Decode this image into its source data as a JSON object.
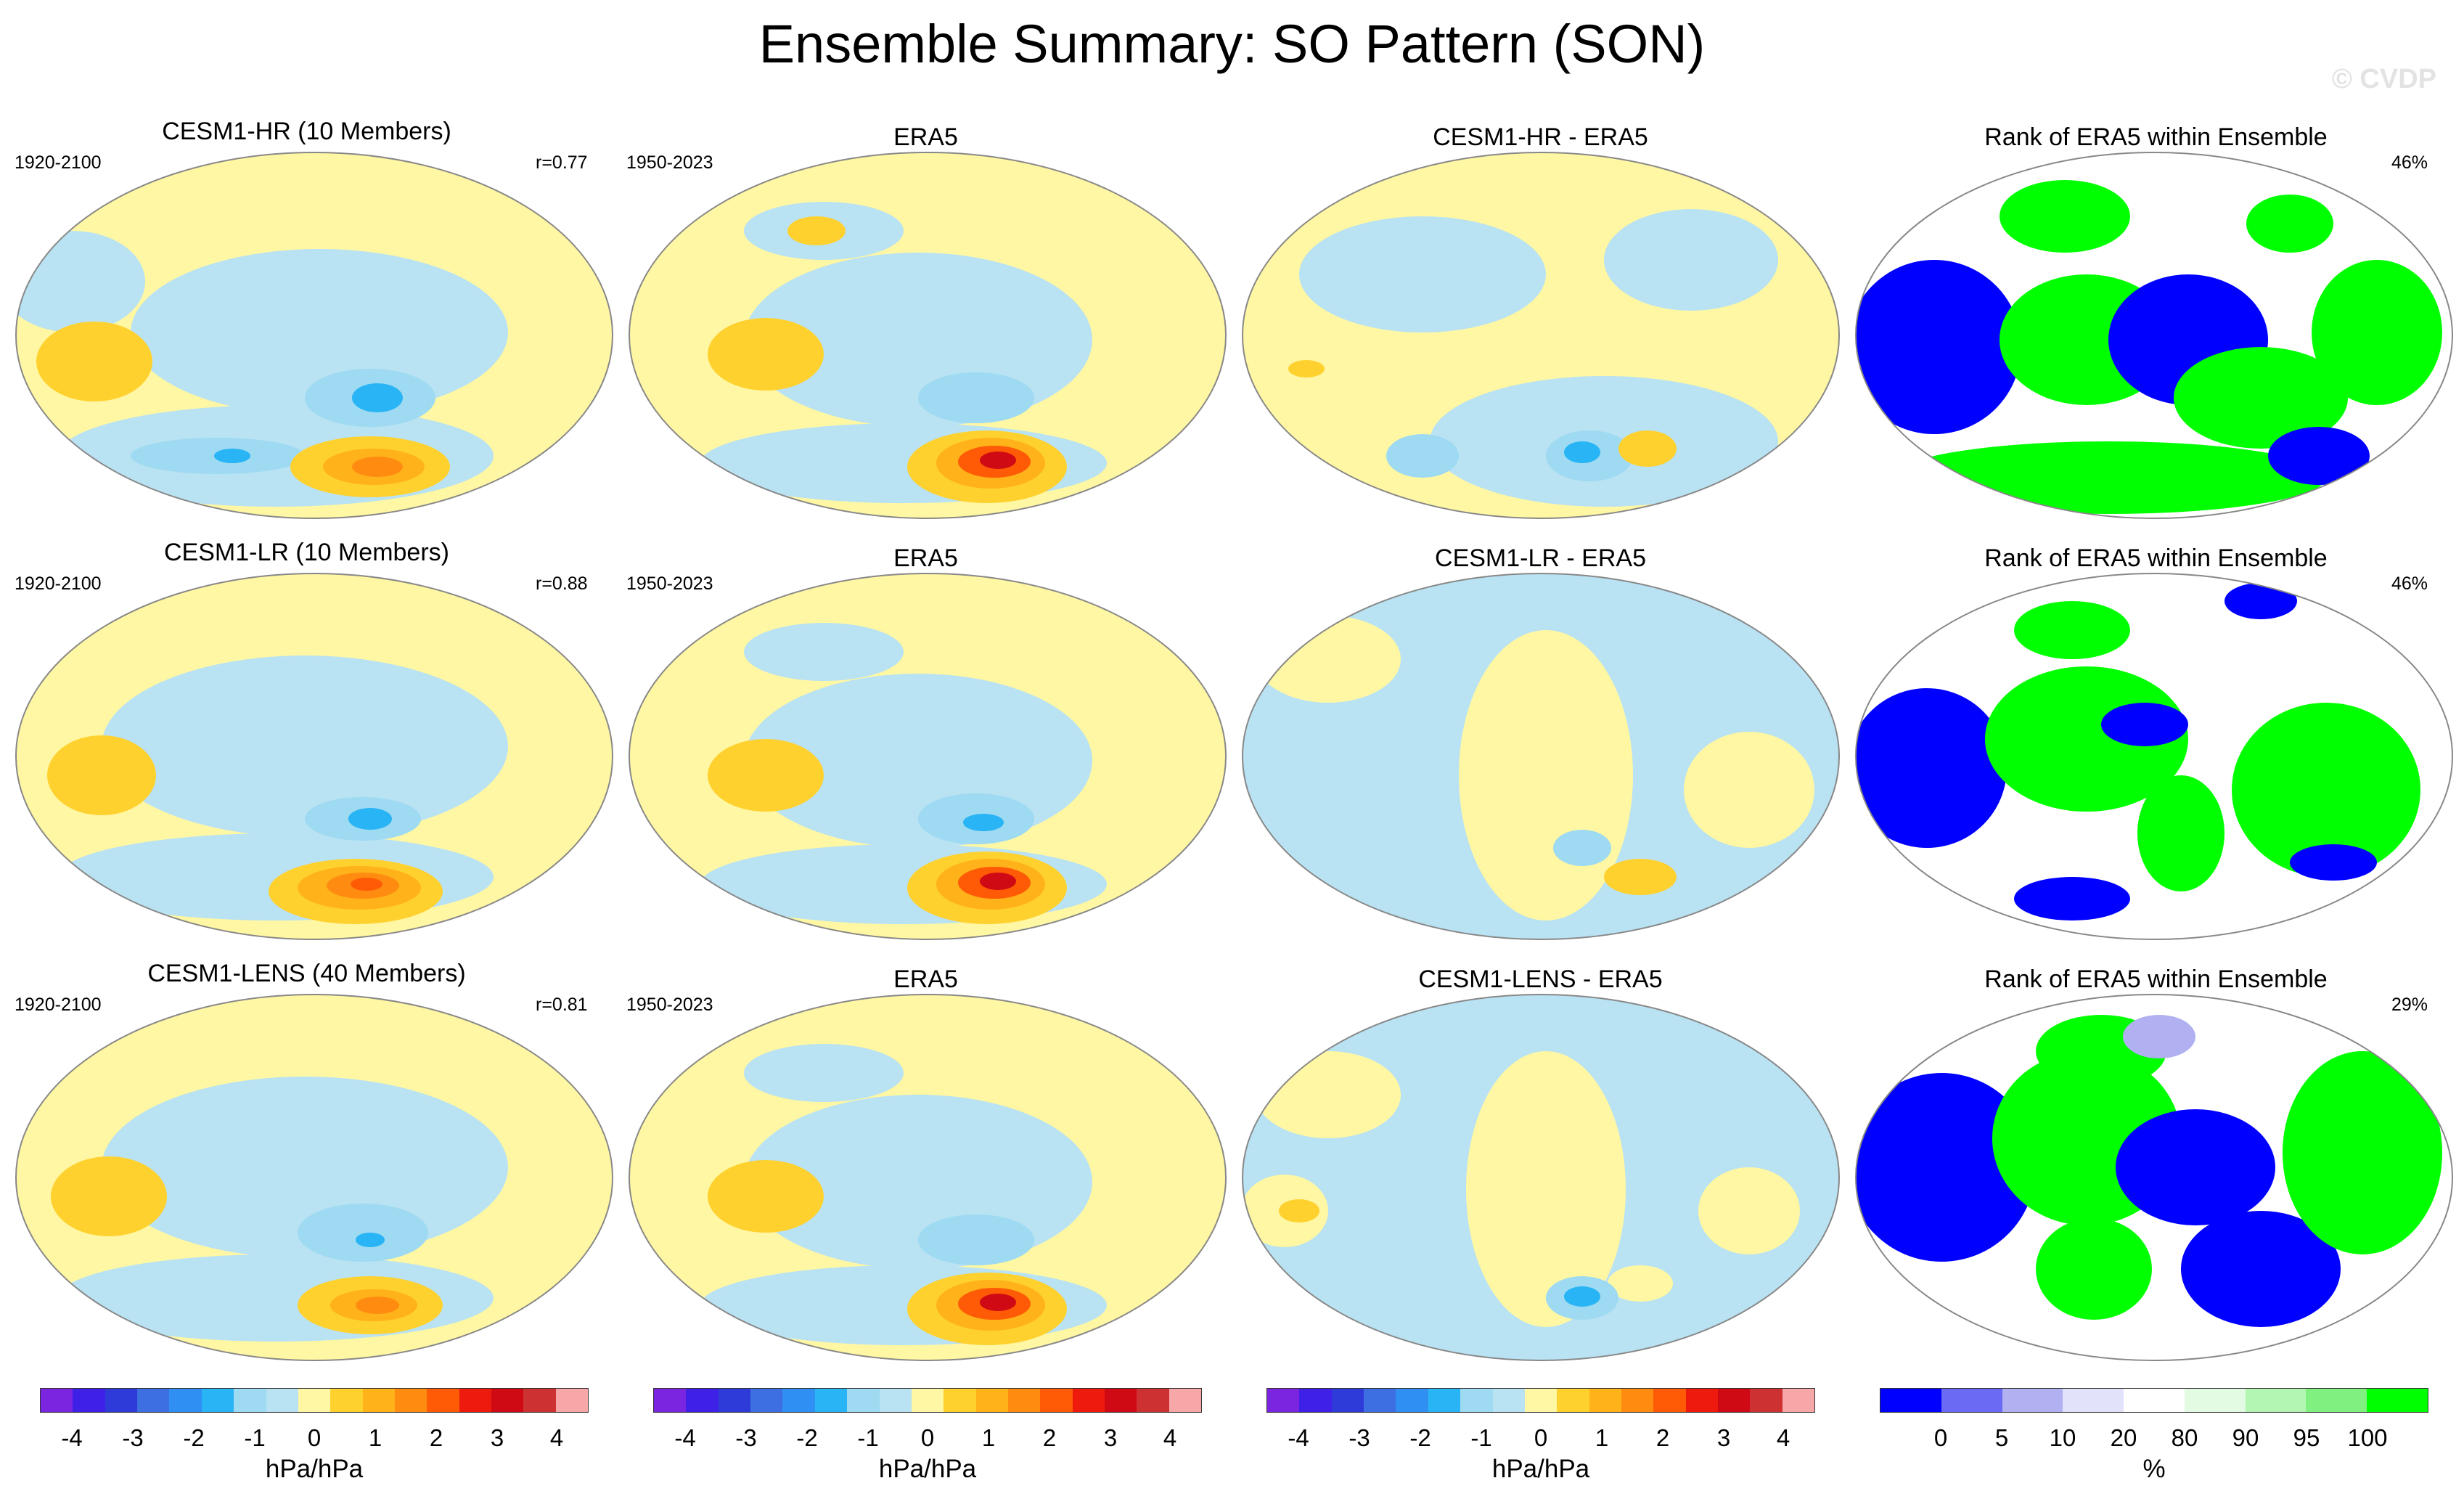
{
  "figure": {
    "title": "Ensemble Summary: SO Pattern (SON)",
    "watermark": "© CVDP"
  },
  "rows": [
    {
      "model": {
        "title": "CESM1-HR (10 Members)",
        "years": "1920-2100",
        "corr": "r=0.77"
      },
      "obs": {
        "title": "ERA5",
        "years": "1950-2023"
      },
      "diff": {
        "title": "CESM1-HR - ERA5"
      },
      "rank": {
        "title": "Rank of ERA5 within Ensemble",
        "pct": "46%"
      }
    },
    {
      "model": {
        "title": "CESM1-LR (10 Members)",
        "years": "1920-2100",
        "corr": "r=0.88"
      },
      "obs": {
        "title": "ERA5",
        "years": "1950-2023"
      },
      "diff": {
        "title": "CESM1-LR - ERA5"
      },
      "rank": {
        "title": "Rank of ERA5 within Ensemble",
        "pct": "46%"
      }
    },
    {
      "model": {
        "title": "CESM1-LENS (40 Members)",
        "years": "1920-2100",
        "corr": "r=0.81"
      },
      "obs": {
        "title": "ERA5",
        "years": "1950-2023"
      },
      "diff": {
        "title": "CESM1-LENS - ERA5"
      },
      "rank": {
        "title": "Rank of ERA5 within Ensemble",
        "pct": "29%"
      }
    }
  ],
  "colorbars": {
    "slp": {
      "unit": "hPa/hPa",
      "ticks": [
        "-4",
        "-3",
        "-2",
        "-1",
        "0",
        "1",
        "2",
        "3",
        "4"
      ],
      "colors": [
        "#7b25e0",
        "#3e20e6",
        "#2f3bd8",
        "#3d6fe3",
        "#2f8ff3",
        "#28b4f5",
        "#9edaf2",
        "#b9e2f2",
        "#fff7a3",
        "#ffd12f",
        "#ffb219",
        "#ff8c11",
        "#ff5a06",
        "#ef1a0e",
        "#d00a14",
        "#cd3131",
        "#f8a7a9"
      ]
    },
    "rank": {
      "unit": "%",
      "ticks": [
        "0",
        "5",
        "10",
        "20",
        "80",
        "90",
        "95",
        "100"
      ],
      "colors": [
        "#0000ff",
        "#6a6af5",
        "#b1b1f2",
        "#e2e3fa",
        "#ffffff",
        "#e3fbe3",
        "#b3f5b3",
        "#80f080",
        "#00ff00"
      ]
    }
  }
}
